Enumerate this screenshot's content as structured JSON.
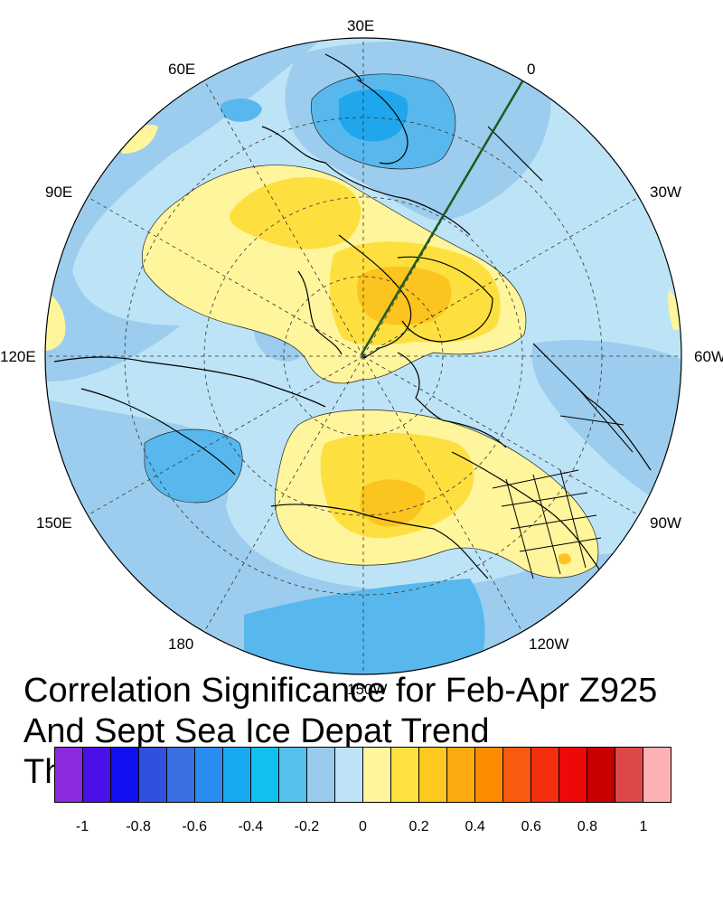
{
  "map": {
    "projection": "north-polar-stereographic",
    "longitude_labels": {
      "lon_30e": "30E",
      "lon_0": "0",
      "lon_30w": "30W",
      "lon_60w": "60W",
      "lon_90w": "90W",
      "lon_120w": "120W",
      "lon_150w": "150W",
      "lon_180": "180",
      "lon_150e": "150E",
      "lon_120e": "120E",
      "lon_90e": "90E",
      "lon_60e": "60E"
    },
    "field": "correlation significance",
    "features": [
      "coastlines",
      "US state boundaries",
      "dashed lat/lon grid",
      "transect line (dark green)"
    ]
  },
  "title": {
    "line1": "Correlation Significance for Feb-Apr Z925",
    "line2": "And Sept Sea Ice Depat Trend",
    "line3": "Th"
  },
  "colorbar": {
    "colors": [
      "#8a2be2",
      "#4b0fe8",
      "#1010f0",
      "#3050e0",
      "#3a6fe0",
      "#2a8cf0",
      "#18a8f0",
      "#10c0f0",
      "#55c0ee",
      "#9acbec",
      "#bfe3f6",
      "#fff59c",
      "#fee240",
      "#fec820",
      "#fdaa10",
      "#fb8c00",
      "#f85a10",
      "#f52e10",
      "#ee0808",
      "#c80000",
      "#dc4848",
      "#ffb0b4"
    ],
    "labels": [
      "-1",
      "-0.8",
      "-0.6",
      "-0.4",
      "-0.2",
      "0",
      "0.2",
      "0.4",
      "0.6",
      "0.8",
      "1"
    ]
  },
  "palette": {
    "light_blue": "#bde3f6",
    "mid_blue": "#9ccdee",
    "blue": "#58b8ee",
    "deep_blue": "#1fa6ec",
    "light_yellow": "#fff59c",
    "yellow": "#fde03f",
    "orange_yellow": "#fcc41e",
    "transect": "#1f5a1f"
  }
}
